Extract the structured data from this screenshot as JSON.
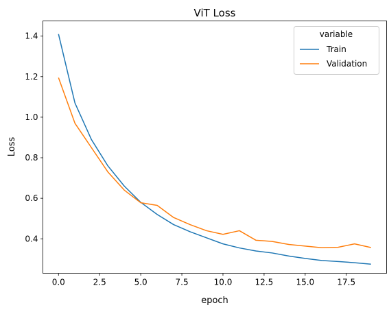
{
  "chart_data": {
    "type": "line",
    "title": "ViT Loss",
    "xlabel": "epoch",
    "ylabel": "Loss",
    "xlim": [
      -0.95,
      19.95
    ],
    "ylim": [
      0.23,
      1.475
    ],
    "x_ticks": [
      0,
      2.5,
      5,
      7.5,
      10,
      12.5,
      15,
      17.5
    ],
    "x_tick_labels": [
      "0.0",
      "2.5",
      "5.0",
      "7.5",
      "10.0",
      "12.5",
      "15.0",
      "17.5"
    ],
    "y_ticks": [
      0.4,
      0.6,
      0.8,
      1.0,
      1.2,
      1.4
    ],
    "y_tick_labels": [
      "0.4",
      "0.6",
      "0.8",
      "1.0",
      "1.2",
      "1.4"
    ],
    "grid": false,
    "legend": {
      "title": "variable",
      "placement": "top-right"
    },
    "x": [
      0,
      1,
      2,
      3,
      4,
      5,
      6,
      7,
      8,
      9,
      10,
      11,
      12,
      13,
      14,
      15,
      16,
      17,
      18,
      19
    ],
    "series": [
      {
        "name": "Train",
        "color": "#1f77b4",
        "values": [
          1.41,
          1.07,
          0.89,
          0.76,
          0.66,
          0.58,
          0.52,
          0.47,
          0.435,
          0.405,
          0.375,
          0.355,
          0.34,
          0.33,
          0.315,
          0.303,
          0.293,
          0.288,
          0.282,
          0.275
        ]
      },
      {
        "name": "Validation",
        "color": "#ff7f0e",
        "values": [
          1.195,
          0.97,
          0.85,
          0.73,
          0.64,
          0.578,
          0.565,
          0.505,
          0.47,
          0.44,
          0.422,
          0.44,
          0.393,
          0.387,
          0.372,
          0.364,
          0.356,
          0.358,
          0.375,
          0.357
        ]
      }
    ]
  }
}
